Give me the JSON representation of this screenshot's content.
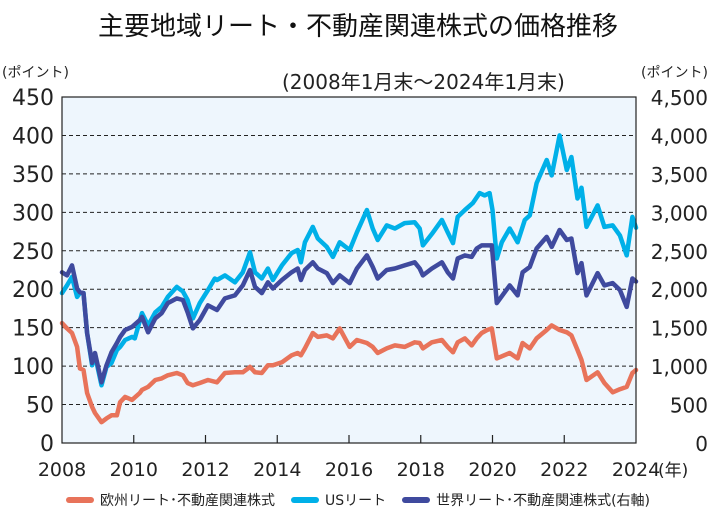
{
  "chart_data": {
    "type": "line",
    "title": "主要地域リート・不動産関連株式の価格推移",
    "subtitle": "(2008年1月末〜2024年1月末)",
    "left_axis": {
      "unit_label": "(ポイント)",
      "ylim": [
        0,
        450
      ],
      "ticks": [
        0,
        50,
        100,
        150,
        200,
        250,
        300,
        350,
        400,
        450
      ],
      "tick_labels": [
        "0",
        "50",
        "100",
        "150",
        "200",
        "250",
        "300",
        "350",
        "400",
        "450"
      ]
    },
    "right_axis": {
      "unit_label": "(ポイント)",
      "ylim": [
        0,
        4500
      ],
      "ticks": [
        0,
        500,
        1000,
        1500,
        2000,
        2500,
        3000,
        3500,
        4000,
        4500
      ],
      "tick_labels": [
        "0",
        "500",
        "1,000",
        "1,500",
        "2,000",
        "2,500",
        "3,000",
        "3,500",
        "4,000",
        "4,500"
      ]
    },
    "x_axis": {
      "xlim": [
        2008,
        2024
      ],
      "ticks": [
        2008,
        2010,
        2012,
        2014,
        2016,
        2018,
        2020,
        2022,
        2024
      ],
      "tick_labels": [
        "2008",
        "2010",
        "2012",
        "2014",
        "2016",
        "2018",
        "2020",
        "2022",
        "2024"
      ],
      "unit_label": "(年)"
    },
    "grid": "horizontal-dashed",
    "legend_position": "bottom",
    "series": [
      {
        "name": "欧州リート･不動産関連株式",
        "axis": "left",
        "color": "#E8735A",
        "points": [
          [
            2008.0,
            156
          ],
          [
            2008.14,
            149
          ],
          [
            2008.28,
            143
          ],
          [
            2008.42,
            125
          ],
          [
            2008.5,
            97
          ],
          [
            2008.6,
            95
          ],
          [
            2008.7,
            65
          ],
          [
            2008.84,
            47
          ],
          [
            2008.92,
            39
          ],
          [
            2009.1,
            27
          ],
          [
            2009.24,
            32
          ],
          [
            2009.38,
            36
          ],
          [
            2009.53,
            36
          ],
          [
            2009.62,
            53
          ],
          [
            2009.76,
            60
          ],
          [
            2009.95,
            56
          ],
          [
            2010.17,
            65
          ],
          [
            2010.23,
            69
          ],
          [
            2010.4,
            73
          ],
          [
            2010.6,
            82
          ],
          [
            2010.78,
            84
          ],
          [
            2010.95,
            88
          ],
          [
            2011.2,
            91
          ],
          [
            2011.37,
            88
          ],
          [
            2011.5,
            78
          ],
          [
            2011.65,
            75
          ],
          [
            2011.84,
            78
          ],
          [
            2012.07,
            82
          ],
          [
            2012.32,
            79
          ],
          [
            2012.54,
            91
          ],
          [
            2012.82,
            92
          ],
          [
            2013.04,
            92
          ],
          [
            2013.24,
            99
          ],
          [
            2013.38,
            92
          ],
          [
            2013.57,
            91
          ],
          [
            2013.74,
            101
          ],
          [
            2013.88,
            101
          ],
          [
            2014.13,
            105
          ],
          [
            2014.4,
            114
          ],
          [
            2014.57,
            117
          ],
          [
            2014.66,
            114
          ],
          [
            2014.77,
            123
          ],
          [
            2014.99,
            143
          ],
          [
            2015.13,
            138
          ],
          [
            2015.38,
            140
          ],
          [
            2015.55,
            136
          ],
          [
            2015.74,
            149
          ],
          [
            2016.02,
            125
          ],
          [
            2016.22,
            134
          ],
          [
            2016.5,
            130
          ],
          [
            2016.66,
            125
          ],
          [
            2016.8,
            117
          ],
          [
            2017.05,
            123
          ],
          [
            2017.28,
            127
          ],
          [
            2017.55,
            125
          ],
          [
            2017.83,
            131
          ],
          [
            2017.97,
            130
          ],
          [
            2018.06,
            123
          ],
          [
            2018.31,
            131
          ],
          [
            2018.59,
            134
          ],
          [
            2018.75,
            125
          ],
          [
            2018.9,
            118
          ],
          [
            2019.03,
            131
          ],
          [
            2019.23,
            136
          ],
          [
            2019.42,
            127
          ],
          [
            2019.56,
            136
          ],
          [
            2019.7,
            143
          ],
          [
            2019.85,
            147
          ],
          [
            2019.98,
            149
          ],
          [
            2020.12,
            110
          ],
          [
            2020.48,
            117
          ],
          [
            2020.7,
            110
          ],
          [
            2020.84,
            130
          ],
          [
            2021.04,
            123
          ],
          [
            2021.23,
            136
          ],
          [
            2021.51,
            147
          ],
          [
            2021.65,
            153
          ],
          [
            2021.87,
            147
          ],
          [
            2022.07,
            144
          ],
          [
            2022.2,
            140
          ],
          [
            2022.37,
            121
          ],
          [
            2022.48,
            108
          ],
          [
            2022.62,
            82
          ],
          [
            2022.93,
            92
          ],
          [
            2023.12,
            78
          ],
          [
            2023.35,
            66
          ],
          [
            2023.55,
            70
          ],
          [
            2023.74,
            73
          ],
          [
            2023.9,
            91
          ],
          [
            2024.0,
            95
          ]
        ]
      },
      {
        "name": "USリート",
        "axis": "left",
        "color": "#00B0E8",
        "points": [
          [
            2008.0,
            195
          ],
          [
            2008.14,
            205
          ],
          [
            2008.28,
            216
          ],
          [
            2008.42,
            190
          ],
          [
            2008.5,
            195
          ],
          [
            2008.6,
            195
          ],
          [
            2008.7,
            143
          ],
          [
            2008.84,
            101
          ],
          [
            2008.92,
            114
          ],
          [
            2009.1,
            75
          ],
          [
            2009.24,
            99
          ],
          [
            2009.38,
            104
          ],
          [
            2009.53,
            121
          ],
          [
            2009.62,
            125
          ],
          [
            2009.76,
            134
          ],
          [
            2009.95,
            138
          ],
          [
            2010.03,
            136
          ],
          [
            2010.23,
            169
          ],
          [
            2010.4,
            153
          ],
          [
            2010.6,
            170
          ],
          [
            2010.78,
            177
          ],
          [
            2010.95,
            190
          ],
          [
            2011.2,
            203
          ],
          [
            2011.37,
            197
          ],
          [
            2011.5,
            186
          ],
          [
            2011.65,
            162
          ],
          [
            2011.84,
            182
          ],
          [
            2012.07,
            199
          ],
          [
            2012.26,
            214
          ],
          [
            2012.32,
            212
          ],
          [
            2012.54,
            218
          ],
          [
            2012.82,
            209
          ],
          [
            2013.04,
            222
          ],
          [
            2013.24,
            248
          ],
          [
            2013.38,
            222
          ],
          [
            2013.57,
            214
          ],
          [
            2013.74,
            227
          ],
          [
            2013.88,
            212
          ],
          [
            2014.13,
            231
          ],
          [
            2014.4,
            247
          ],
          [
            2014.57,
            251
          ],
          [
            2014.66,
            235
          ],
          [
            2014.77,
            261
          ],
          [
            2014.99,
            281
          ],
          [
            2015.13,
            266
          ],
          [
            2015.38,
            255
          ],
          [
            2015.55,
            242
          ],
          [
            2015.74,
            261
          ],
          [
            2016.02,
            251
          ],
          [
            2016.22,
            274
          ],
          [
            2016.5,
            303
          ],
          [
            2016.66,
            279
          ],
          [
            2016.8,
            264
          ],
          [
            2017.05,
            283
          ],
          [
            2017.28,
            279
          ],
          [
            2017.55,
            286
          ],
          [
            2017.83,
            287
          ],
          [
            2017.97,
            279
          ],
          [
            2018.06,
            257
          ],
          [
            2018.31,
            272
          ],
          [
            2018.59,
            290
          ],
          [
            2018.75,
            274
          ],
          [
            2018.9,
            260
          ],
          [
            2019.03,
            294
          ],
          [
            2019.23,
            303
          ],
          [
            2019.45,
            312
          ],
          [
            2019.64,
            325
          ],
          [
            2019.78,
            322
          ],
          [
            2019.92,
            325
          ],
          [
            2020.0,
            303
          ],
          [
            2020.12,
            240
          ],
          [
            2020.26,
            261
          ],
          [
            2020.48,
            279
          ],
          [
            2020.7,
            261
          ],
          [
            2020.9,
            290
          ],
          [
            2021.04,
            296
          ],
          [
            2021.23,
            338
          ],
          [
            2021.51,
            368
          ],
          [
            2021.65,
            348
          ],
          [
            2021.87,
            400
          ],
          [
            2022.07,
            355
          ],
          [
            2022.2,
            372
          ],
          [
            2022.37,
            318
          ],
          [
            2022.48,
            332
          ],
          [
            2022.62,
            281
          ],
          [
            2022.93,
            309
          ],
          [
            2023.12,
            281
          ],
          [
            2023.35,
            283
          ],
          [
            2023.55,
            270
          ],
          [
            2023.74,
            244
          ],
          [
            2023.9,
            294
          ],
          [
            2024.0,
            280
          ]
        ]
      },
      {
        "name": "世界リート･不動産関連株式(右軸)",
        "axis": "right",
        "color": "#3F4A9E",
        "points": [
          [
            2008.0,
            2220
          ],
          [
            2008.14,
            2180
          ],
          [
            2008.28,
            2310
          ],
          [
            2008.42,
            2010
          ],
          [
            2008.5,
            1960
          ],
          [
            2008.6,
            1950
          ],
          [
            2008.7,
            1430
          ],
          [
            2008.84,
            1040
          ],
          [
            2008.92,
            1170
          ],
          [
            2009.1,
            790
          ],
          [
            2009.24,
            1010
          ],
          [
            2009.38,
            1180
          ],
          [
            2009.53,
            1300
          ],
          [
            2009.62,
            1380
          ],
          [
            2009.76,
            1470
          ],
          [
            2009.95,
            1510
          ],
          [
            2010.17,
            1600
          ],
          [
            2010.23,
            1640
          ],
          [
            2010.4,
            1440
          ],
          [
            2010.6,
            1620
          ],
          [
            2010.78,
            1690
          ],
          [
            2010.95,
            1820
          ],
          [
            2011.2,
            1880
          ],
          [
            2011.37,
            1860
          ],
          [
            2011.5,
            1700
          ],
          [
            2011.65,
            1490
          ],
          [
            2011.84,
            1600
          ],
          [
            2012.07,
            1790
          ],
          [
            2012.32,
            1730
          ],
          [
            2012.54,
            1880
          ],
          [
            2012.82,
            1920
          ],
          [
            2013.04,
            2050
          ],
          [
            2013.24,
            2250
          ],
          [
            2013.38,
            2030
          ],
          [
            2013.57,
            1950
          ],
          [
            2013.74,
            2090
          ],
          [
            2013.88,
            2010
          ],
          [
            2014.13,
            2120
          ],
          [
            2014.4,
            2220
          ],
          [
            2014.57,
            2270
          ],
          [
            2014.66,
            2120
          ],
          [
            2014.77,
            2250
          ],
          [
            2014.99,
            2350
          ],
          [
            2015.13,
            2270
          ],
          [
            2015.38,
            2210
          ],
          [
            2015.55,
            2080
          ],
          [
            2015.74,
            2180
          ],
          [
            2016.02,
            2080
          ],
          [
            2016.22,
            2270
          ],
          [
            2016.5,
            2440
          ],
          [
            2016.66,
            2290
          ],
          [
            2016.8,
            2140
          ],
          [
            2017.05,
            2250
          ],
          [
            2017.28,
            2270
          ],
          [
            2017.55,
            2310
          ],
          [
            2017.83,
            2350
          ],
          [
            2017.97,
            2270
          ],
          [
            2018.06,
            2180
          ],
          [
            2018.31,
            2270
          ],
          [
            2018.59,
            2350
          ],
          [
            2018.75,
            2220
          ],
          [
            2018.9,
            2140
          ],
          [
            2019.03,
            2400
          ],
          [
            2019.23,
            2440
          ],
          [
            2019.42,
            2420
          ],
          [
            2019.56,
            2530
          ],
          [
            2019.7,
            2570
          ],
          [
            2019.98,
            2570
          ],
          [
            2020.12,
            1820
          ],
          [
            2020.48,
            2050
          ],
          [
            2020.7,
            1920
          ],
          [
            2020.84,
            2220
          ],
          [
            2021.04,
            2290
          ],
          [
            2021.23,
            2530
          ],
          [
            2021.51,
            2680
          ],
          [
            2021.65,
            2550
          ],
          [
            2021.87,
            2770
          ],
          [
            2022.07,
            2640
          ],
          [
            2022.2,
            2660
          ],
          [
            2022.37,
            2210
          ],
          [
            2022.48,
            2340
          ],
          [
            2022.62,
            1920
          ],
          [
            2022.93,
            2210
          ],
          [
            2023.12,
            2050
          ],
          [
            2023.35,
            2080
          ],
          [
            2023.55,
            1990
          ],
          [
            2023.74,
            1770
          ],
          [
            2023.9,
            2140
          ],
          [
            2024.0,
            2100
          ]
        ]
      }
    ]
  }
}
